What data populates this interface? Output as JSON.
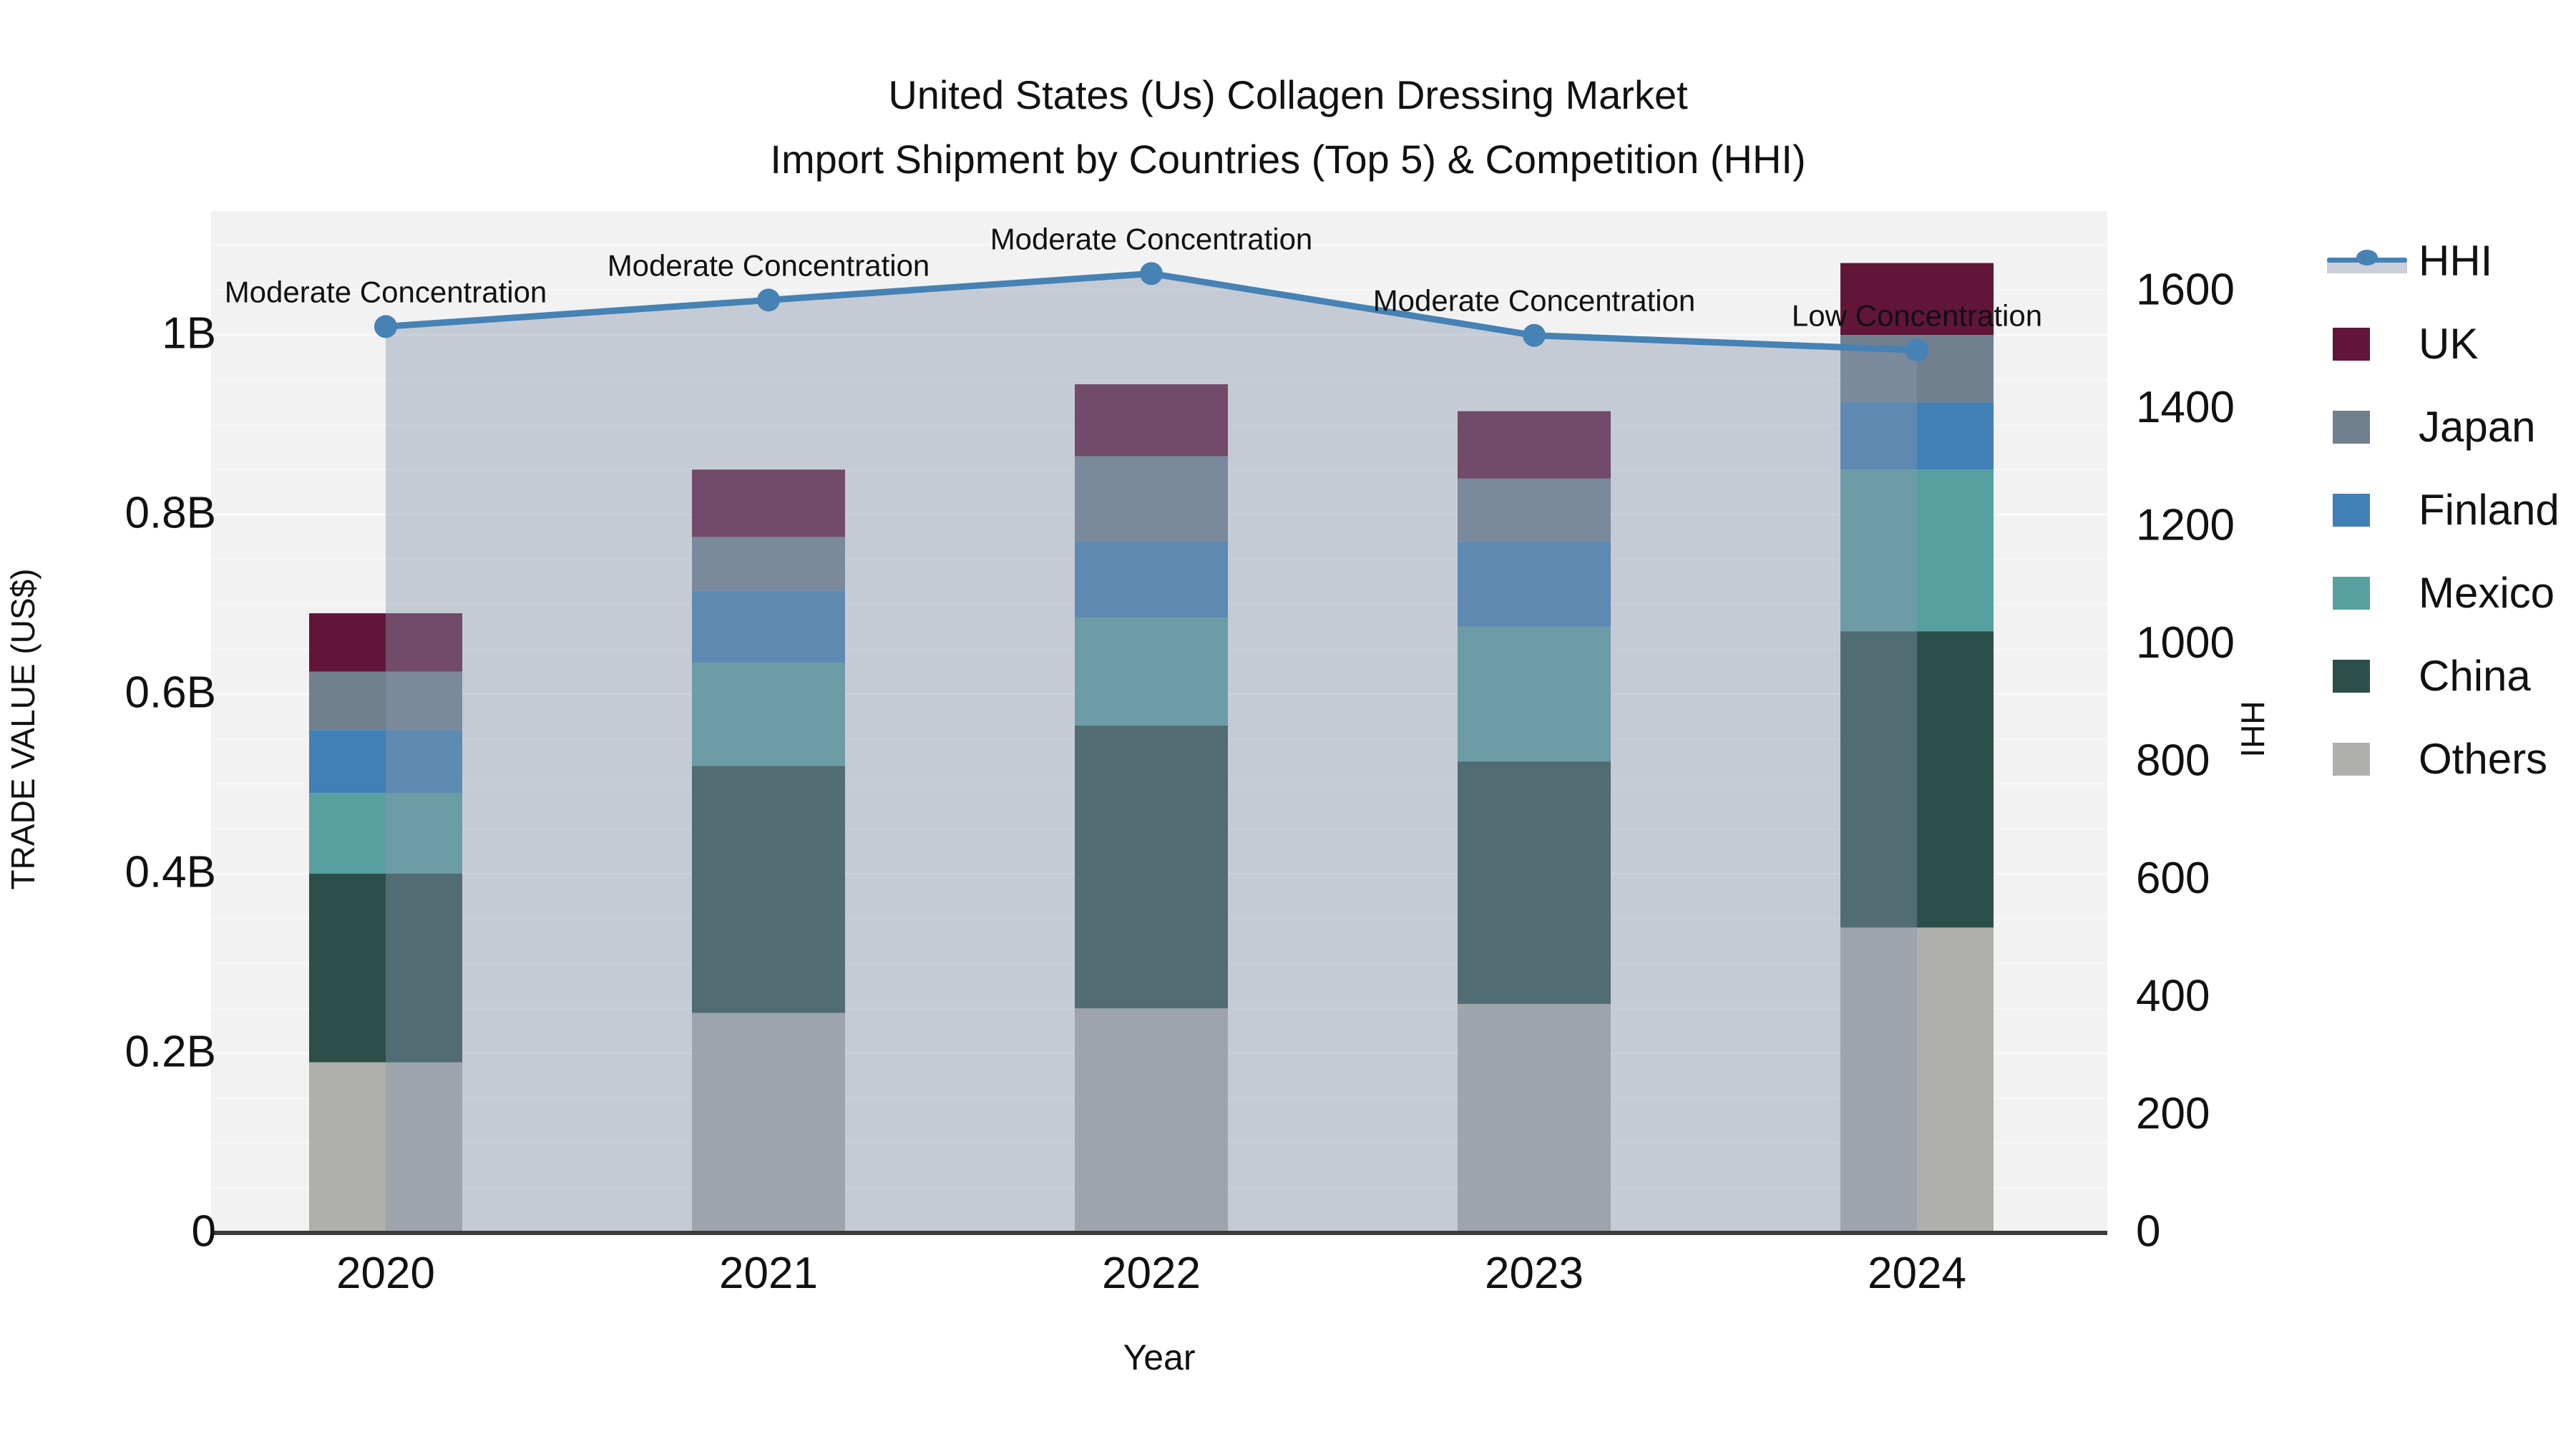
{
  "title": {
    "line1": "United States (Us) Collagen Dressing Market",
    "line2": "Import Shipment by Countries (Top 5) & Competition (HHI)"
  },
  "chart_data": {
    "type": "bar",
    "subtype": "stacked-bars-with-line",
    "categories": [
      "2020",
      "2021",
      "2022",
      "2023",
      "2024"
    ],
    "unit": "B US$",
    "series": [
      {
        "name": "Others",
        "color": "#afafac",
        "values": [
          0.19,
          0.245,
          0.25,
          0.255,
          0.34
        ]
      },
      {
        "name": "China",
        "color": "#2c4f4a",
        "values": [
          0.21,
          0.275,
          0.315,
          0.27,
          0.33
        ]
      },
      {
        "name": "Mexico",
        "color": "#58a0a0",
        "values": [
          0.09,
          0.115,
          0.12,
          0.15,
          0.18
        ]
      },
      {
        "name": "Finland",
        "color": "#4080b5",
        "values": [
          0.07,
          0.08,
          0.085,
          0.095,
          0.075
        ]
      },
      {
        "name": "Japan",
        "color": "#71808f",
        "values": [
          0.065,
          0.06,
          0.095,
          0.07,
          0.075
        ]
      },
      {
        "name": "UK",
        "color": "#611539",
        "values": [
          0.065,
          0.075,
          0.08,
          0.075,
          0.08
        ]
      }
    ],
    "bar_totals": [
      0.69,
      0.85,
      0.945,
      0.915,
      1.08
    ],
    "line_series": {
      "name": "HHI",
      "color": "#4682b4",
      "area_fill": "rgba(136,150,172,0.42)",
      "values": [
        1540,
        1585,
        1630,
        1525,
        1500
      ]
    },
    "annotations": [
      {
        "category": "2020",
        "text": "Moderate Concentration"
      },
      {
        "category": "2021",
        "text": "Moderate Concentration"
      },
      {
        "category": "2022",
        "text": "Moderate Concentration"
      },
      {
        "category": "2023",
        "text": "Moderate Concentration"
      },
      {
        "category": "2024",
        "text": "Low Concentration"
      }
    ],
    "left_axis": {
      "title": "TRADE VALUE (US$)",
      "ticks": [
        "0",
        "0.2B",
        "0.4B",
        "0.6B",
        "0.8B",
        "1B"
      ],
      "tick_values": [
        0,
        0.2,
        0.4,
        0.6,
        0.8,
        1.0
      ],
      "range": [
        0,
        1.137
      ]
    },
    "right_axis": {
      "title": "HHI",
      "ticks": [
        "0",
        "200",
        "400",
        "600",
        "800",
        "1000",
        "1200",
        "1400",
        "1600"
      ],
      "tick_values": [
        0,
        200,
        400,
        600,
        800,
        1000,
        1200,
        1400,
        1600
      ],
      "range": [
        0,
        1735
      ]
    },
    "x_axis": {
      "title": "Year"
    },
    "grid": "on",
    "plot_background": "#f2f2f2",
    "legend_position": "right"
  },
  "legend": {
    "items": [
      {
        "label": "HHI",
        "type": "line",
        "color": "#4682b4"
      },
      {
        "label": "UK",
        "type": "square",
        "color": "#611539"
      },
      {
        "label": "Japan",
        "type": "square",
        "color": "#71808f"
      },
      {
        "label": "Finland",
        "type": "square",
        "color": "#4080b5"
      },
      {
        "label": "Mexico",
        "type": "square",
        "color": "#58a0a0"
      },
      {
        "label": "China",
        "type": "square",
        "color": "#2c4f4a"
      },
      {
        "label": "Others",
        "type": "square",
        "color": "#afafac"
      }
    ]
  }
}
